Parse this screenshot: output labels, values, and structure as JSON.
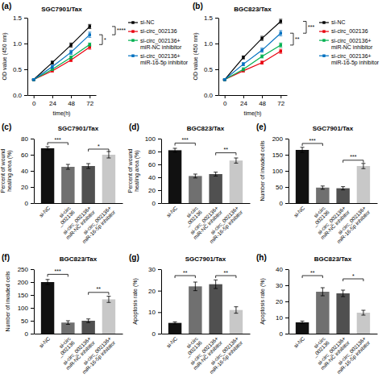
{
  "chart_data": [
    {
      "type": "line",
      "panel_label": "(a)",
      "title": "SGC7901/Tax",
      "xlabel": "time(h)",
      "ylabel": "OD value (450 nm)",
      "x": [
        0,
        24,
        48,
        72
      ],
      "xlim": [
        -8,
        80
      ],
      "xticks": [
        0,
        24,
        48,
        72
      ],
      "ylim": [
        0.0,
        1.5
      ],
      "yticks": [
        {
          "value": 0.0,
          "label": "0.0"
        },
        0.5,
        {
          "value": 1.0,
          "label": "1.0"
        },
        1.5
      ],
      "marker": "square",
      "legend": "right",
      "grid": false,
      "series": [
        {
          "name": "si-NC",
          "color": "#000000",
          "values": [
            0.3,
            0.63,
            0.97,
            1.33
          ],
          "errors": [
            0.01,
            0.03,
            0.04,
            0.04
          ]
        },
        {
          "name": "si-circ_002136",
          "color": "#e8000d",
          "values": [
            0.3,
            0.47,
            0.68,
            0.93
          ],
          "errors": [
            0.01,
            0.02,
            0.03,
            0.04
          ]
        },
        {
          "name": "si-circ_002136+\nmiR-NC inhibitor",
          "color": "#00b050",
          "values": [
            0.3,
            0.5,
            0.73,
            0.98
          ],
          "errors": [
            0.01,
            0.02,
            0.03,
            0.03
          ]
        },
        {
          "name": "si-circ_002136+\nmiR-16-5p inhibitor",
          "color": "#0070c0",
          "values": [
            0.3,
            0.55,
            0.83,
            1.17
          ],
          "errors": [
            0.01,
            0.03,
            0.04,
            0.05
          ]
        }
      ],
      "annotations": [
        {
          "label": "*",
          "y1": 1.17,
          "y2": 0.98
        },
        {
          "label": "****",
          "y1": 1.33,
          "y2": 1.17
        }
      ]
    },
    {
      "type": "line",
      "panel_label": "(b)",
      "title": "BGC823/Tax",
      "xlabel": "time(h)",
      "ylabel": "OD value (450 nm)",
      "x": [
        0,
        24,
        48,
        72
      ],
      "xlim": [
        -8,
        80
      ],
      "xticks": [
        0,
        24,
        48,
        72
      ],
      "ylim": [
        0.0,
        1.5
      ],
      "yticks": [
        {
          "value": 0.0,
          "label": "0.0"
        },
        0.5,
        {
          "value": 1.0,
          "label": "1.0"
        },
        1.5
      ],
      "marker": "square",
      "legend": "right",
      "grid": false,
      "series": [
        {
          "name": "si-NC",
          "color": "#000000",
          "values": [
            0.3,
            0.73,
            1.1,
            1.43
          ],
          "errors": [
            0.01,
            0.03,
            0.04,
            0.04
          ]
        },
        {
          "name": "si-circ_002136",
          "color": "#e8000d",
          "values": [
            0.3,
            0.47,
            0.63,
            0.85
          ],
          "errors": [
            0.01,
            0.02,
            0.03,
            0.04
          ]
        },
        {
          "name": "si-circ_002136+\nmiR-NC inhibitor",
          "color": "#00b050",
          "values": [
            0.3,
            0.5,
            0.75,
            0.97
          ],
          "errors": [
            0.01,
            0.03,
            0.03,
            0.04
          ]
        },
        {
          "name": "si-circ_002136+\nmiR-16-5p inhibitor",
          "color": "#0070c0",
          "values": [
            0.3,
            0.6,
            0.87,
            1.2
          ],
          "errors": [
            0.01,
            0.03,
            0.04,
            0.05
          ]
        }
      ],
      "annotations": [
        {
          "label": "**",
          "y1": 1.2,
          "y2": 0.97
        },
        {
          "label": "***",
          "y1": 1.43,
          "y2": 1.2
        }
      ]
    },
    {
      "type": "bar",
      "panel_label": "(c)",
      "title": "SGC7901/Tax",
      "ylabel": "Percent of wound\nhealing area (%)",
      "categories": [
        "si-NC",
        "si-circ\n_002136",
        "si-circ_002136+\nmiR-NC inhibitor",
        "si-circ_002136+\nmiR-16-5p inhibitor"
      ],
      "values": [
        68,
        45,
        46,
        60
      ],
      "errors": [
        2,
        3,
        3,
        4
      ],
      "colors": [
        "#111111",
        "#707070",
        "#505050",
        "#c8c8c8"
      ],
      "ylim": [
        0,
        80
      ],
      "yticks": [
        0,
        20,
        40,
        60,
        80
      ],
      "grid": false,
      "annotations": [
        {
          "pair": [
            0,
            1
          ],
          "label": "***",
          "y": 75
        },
        {
          "pair": [
            2,
            3
          ],
          "label": "*",
          "y": 67
        }
      ]
    },
    {
      "type": "bar",
      "panel_label": "(d)",
      "title": "BGC823/Tax",
      "ylabel": "Percent of wound\nhealing area (%)",
      "categories": [
        "si-NC",
        "si-circ\n_002136",
        "si-circ_002136+\nmiR-NC inhibitor",
        "si-circ_002136+\nmiR-16-5p inhibitor"
      ],
      "values": [
        82,
        42,
        45,
        66
      ],
      "errors": [
        3,
        3,
        3,
        4
      ],
      "colors": [
        "#111111",
        "#707070",
        "#505050",
        "#c8c8c8"
      ],
      "ylim": [
        0,
        100
      ],
      "yticks": [
        0,
        20,
        40,
        60,
        80,
        100
      ],
      "grid": false,
      "annotations": [
        {
          "pair": [
            0,
            1
          ],
          "label": "***",
          "y": 93
        },
        {
          "pair": [
            2,
            3
          ],
          "label": "**",
          "y": 78
        }
      ]
    },
    {
      "type": "bar",
      "panel_label": "(e)",
      "title": "SGC7901/Tax",
      "ylabel": "Number of invaded cells",
      "categories": [
        "si-NC",
        "si-circ\n_002136",
        "si-circ_002136+\nmiR-NC inhibitor",
        "si-circ_002136+\nmiR-16-5p inhibitor"
      ],
      "values": [
        165,
        48,
        46,
        115
      ],
      "errors": [
        8,
        5,
        5,
        8
      ],
      "colors": [
        "#111111",
        "#707070",
        "#505050",
        "#c8c8c8"
      ],
      "ylim": [
        0,
        200
      ],
      "yticks": [
        0,
        50,
        100,
        150,
        200
      ],
      "grid": false,
      "annotations": [
        {
          "pair": [
            0,
            1
          ],
          "label": "***",
          "y": 185
        },
        {
          "pair": [
            2,
            3
          ],
          "label": "***",
          "y": 133
        }
      ]
    },
    {
      "type": "bar",
      "panel_label": "(f)",
      "title": "BGC823/Tax",
      "ylabel": "Number of invaded cells",
      "categories": [
        "si-NC",
        "si-circ\n_002136",
        "si-circ_002136+\nmiR-NC inhibitor",
        "si-circ_002136+\nmiR-16-5p inhibitor"
      ],
      "values": [
        200,
        43,
        50,
        133
      ],
      "errors": [
        10,
        7,
        7,
        12
      ],
      "colors": [
        "#111111",
        "#707070",
        "#505050",
        "#c8c8c8"
      ],
      "ylim": [
        0,
        250
      ],
      "yticks": [
        0,
        50,
        100,
        150,
        200,
        250
      ],
      "grid": false,
      "annotations": [
        {
          "pair": [
            0,
            1
          ],
          "label": "***",
          "y": 230
        },
        {
          "pair": [
            2,
            3
          ],
          "label": "**",
          "y": 160
        }
      ]
    },
    {
      "type": "bar",
      "panel_label": "(g)",
      "title": "SGC7901/Tax",
      "ylabel": "Apoptosis rate (%)",
      "categories": [
        "si-NC",
        "si-circ\n_002136",
        "si-circ_002136+\nmiR-NC inhibitor",
        "si-circ_002136+\nmiR-16-5p inhibitor"
      ],
      "values": [
        5,
        22,
        23,
        11
      ],
      "errors": [
        0.5,
        2.0,
        2.0,
        1.5
      ],
      "colors": [
        "#111111",
        "#707070",
        "#505050",
        "#c8c8c8"
      ],
      "ylim": [
        0,
        30
      ],
      "yticks": [
        0,
        10,
        20,
        30
      ],
      "grid": false,
      "annotations": [
        {
          "pair": [
            0,
            1
          ],
          "label": "**",
          "y": 27
        },
        {
          "pair": [
            2,
            3
          ],
          "label": "**",
          "y": 27
        }
      ]
    },
    {
      "type": "bar",
      "panel_label": "(h)",
      "title": "BGC823/Tax",
      "ylabel": "Apoptosis rate (%)",
      "categories": [
        "si-NC",
        "si-circ\n_002136",
        "si-circ_002136+\nmiR-NC inhibitor",
        "si-circ_002136+\nmiR-16-5p inhibitor"
      ],
      "values": [
        7,
        26,
        25,
        13
      ],
      "errors": [
        0.8,
        2.5,
        2.0,
        1.5
      ],
      "colors": [
        "#111111",
        "#707070",
        "#505050",
        "#c8c8c8"
      ],
      "ylim": [
        0,
        40
      ],
      "yticks": [
        0,
        10,
        20,
        30,
        40
      ],
      "grid": false,
      "annotations": [
        {
          "pair": [
            0,
            1
          ],
          "label": "**",
          "y": 36
        },
        {
          "pair": [
            2,
            3
          ],
          "label": "*",
          "y": 34
        }
      ]
    }
  ]
}
